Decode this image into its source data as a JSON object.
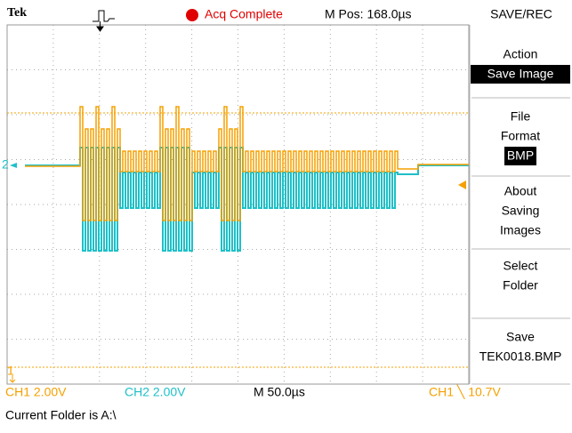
{
  "header": {
    "brand": "Tek",
    "status": "Acq Complete",
    "position": "M Pos: 168.0µs"
  },
  "markers": {
    "ch2": "2",
    "ch1": "1"
  },
  "menu": {
    "title": "SAVE/REC",
    "items": [
      {
        "lines": [
          "Action"
        ],
        "value": "Save Image"
      },
      {
        "lines": [
          "File",
          "Format"
        ],
        "value": "BMP"
      },
      {
        "lines": [
          "About",
          "Saving",
          "Images"
        ]
      },
      {
        "lines": [
          "Select",
          "Folder"
        ]
      },
      {
        "lines": [
          "Save"
        ],
        "value": "TEK0018.BMP"
      }
    ]
  },
  "status_bar": {
    "ch1": "CH1  2.00V",
    "ch2": "CH2  2.00V",
    "timebase": "M 50.0µs",
    "trigger": "CH1 ╲ 10.7V"
  },
  "footer": "Current Folder is A:\\"
}
